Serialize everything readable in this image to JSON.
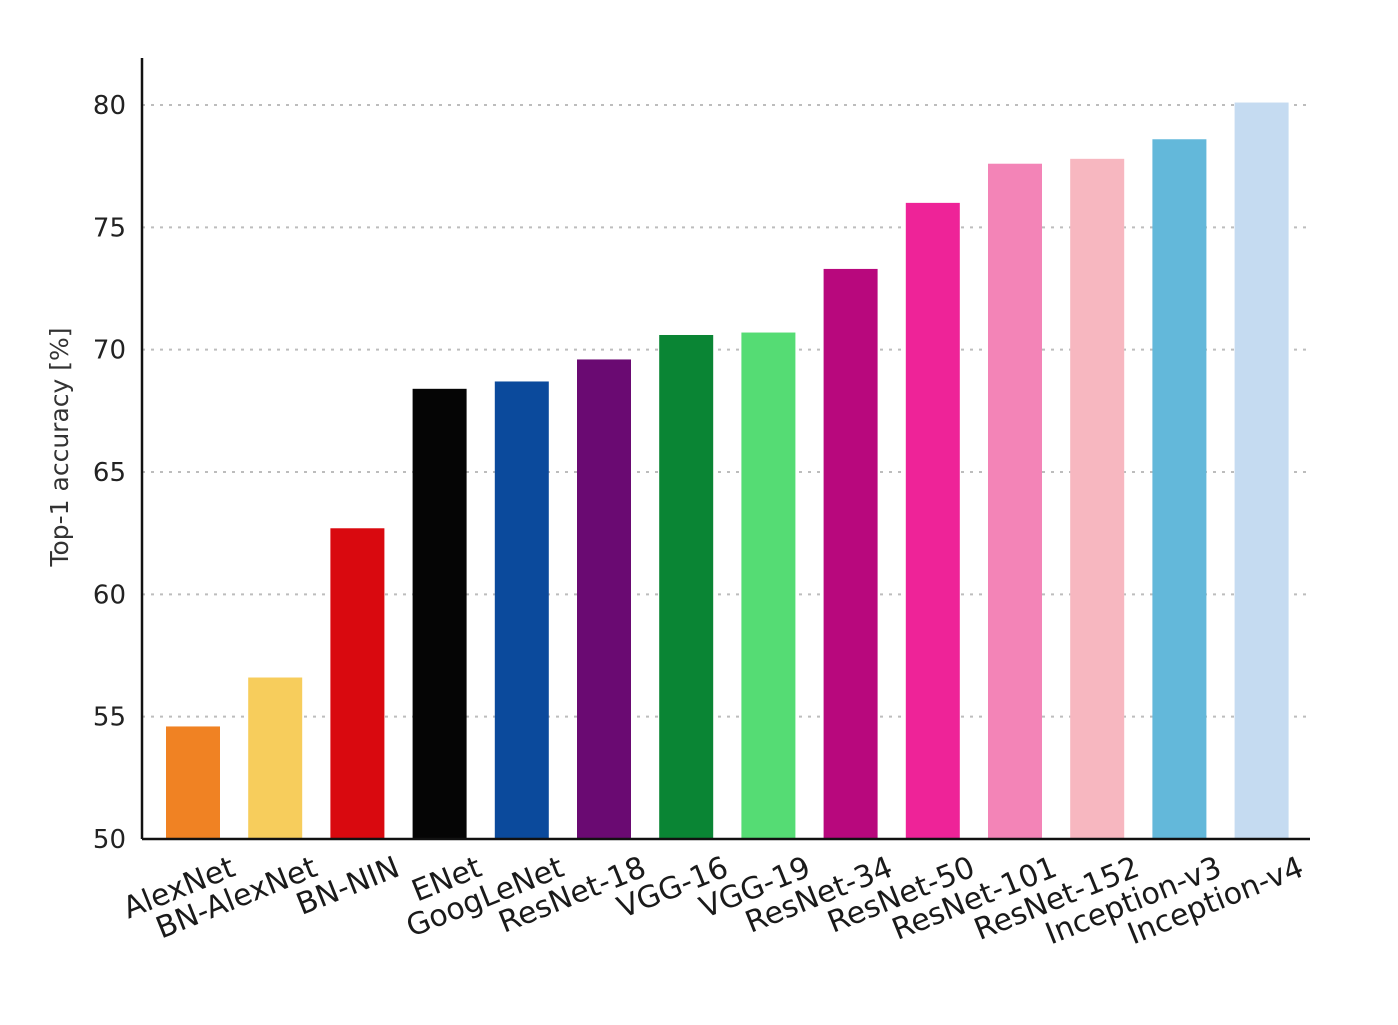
{
  "chart_data": {
    "type": "bar",
    "title": "",
    "xlabel": "",
    "ylabel": "Top-1 accuracy [%]",
    "ylim": [
      50,
      82
    ],
    "yticks": [
      50,
      55,
      60,
      65,
      70,
      75,
      80
    ],
    "grid": true,
    "legend": "none",
    "categories": [
      "AlexNet",
      "BN-AlexNet",
      "BN-NIN",
      "ENet",
      "GoogLeNet",
      "ResNet-18",
      "VGG-16",
      "VGG-19",
      "ResNet-34",
      "ResNet-50",
      "ResNet-101",
      "ResNet-152",
      "Inception-v3",
      "Inception-v4"
    ],
    "values": [
      54.6,
      56.6,
      62.7,
      68.4,
      68.7,
      69.6,
      70.6,
      70.7,
      73.3,
      76.0,
      77.6,
      77.8,
      78.6,
      80.1
    ],
    "colors": [
      "#f08223",
      "#f7cd5c",
      "#d9090f",
      "#050505",
      "#0b4a9c",
      "#6a0a72",
      "#0a8534",
      "#55dc74",
      "#b8087d",
      "#ee2398",
      "#f384b7",
      "#f7b7c0",
      "#63b8da",
      "#c5dbf1"
    ]
  }
}
